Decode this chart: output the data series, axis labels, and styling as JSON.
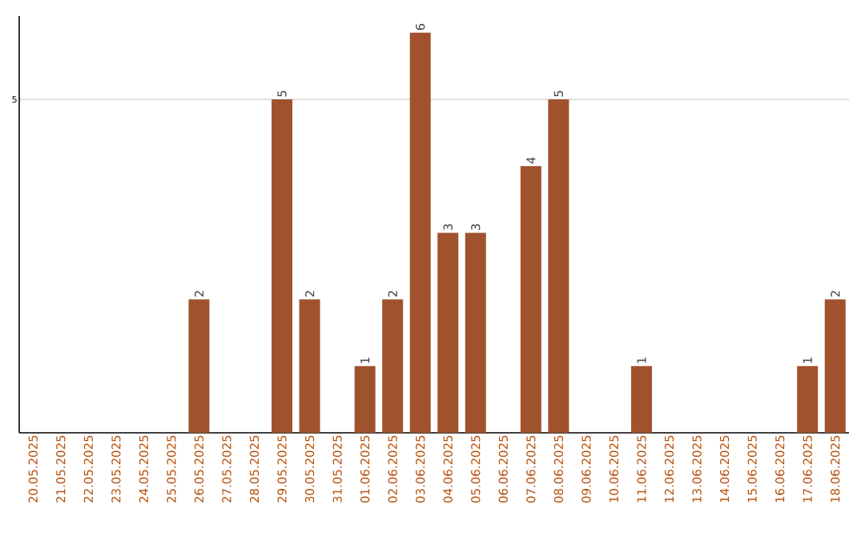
{
  "chart_data": {
    "type": "bar",
    "categories": [
      "20.05.2025",
      "21.05.2025",
      "22.05.2025",
      "23.05.2025",
      "24.05.2025",
      "25.05.2025",
      "26.05.2025",
      "27.05.2025",
      "28.05.2025",
      "29.05.2025",
      "30.05.2025",
      "31.05.2025",
      "01.06.2025",
      "02.06.2025",
      "03.06.2025",
      "04.06.2025",
      "05.06.2025",
      "06.06.2025",
      "07.06.2025",
      "08.06.2025",
      "09.06.2025",
      "10.06.2025",
      "11.06.2025",
      "12.06.2025",
      "13.06.2025",
      "14.06.2025",
      "15.06.2025",
      "16.06.2025",
      "17.06.2025",
      "18.06.2025"
    ],
    "values": [
      0,
      0,
      0,
      0,
      0,
      0,
      2,
      0,
      0,
      5,
      2,
      0,
      1,
      2,
      6,
      3,
      3,
      0,
      4,
      5,
      0,
      0,
      1,
      0,
      0,
      0,
      0,
      0,
      1,
      2
    ],
    "value_labels": [
      null,
      null,
      null,
      null,
      null,
      null,
      "2",
      null,
      null,
      "5",
      "2",
      null,
      "1",
      "2",
      "6",
      "3",
      "3",
      null,
      "4",
      "5",
      null,
      null,
      "1",
      null,
      null,
      null,
      null,
      null,
      "1",
      "2"
    ],
    "color": "#a0522d",
    "ylim": [
      0,
      6.25
    ],
    "yticks": [
      5
    ],
    "grid": "y"
  }
}
